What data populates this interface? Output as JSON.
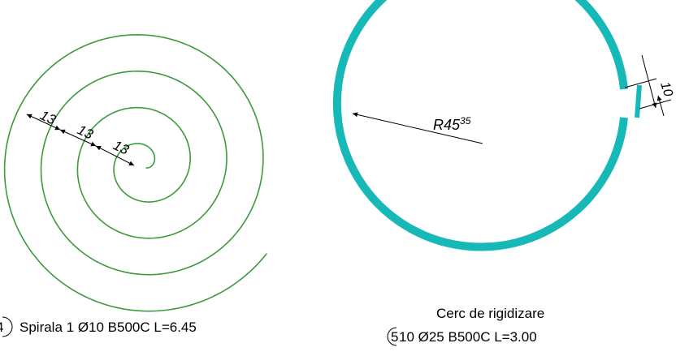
{
  "spiral": {
    "dimensions": [
      "13",
      "13",
      "13"
    ],
    "marker": "4",
    "caption": "Spirala 1 Ø10 B500C L=6.45",
    "color": "#3c9a3c"
  },
  "ring": {
    "radius_label": "R45",
    "radius_superscript": "35",
    "overlap_dimension": "10",
    "title": "Cerc de rigidizare",
    "marker": "5",
    "caption": "10 Ø25 B500C L=3.00",
    "color": "#17b8b8"
  }
}
